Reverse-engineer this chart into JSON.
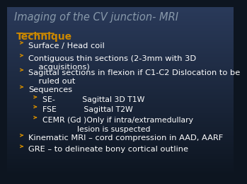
{
  "title": "Imaging of the CV junction- MRI",
  "title_color": "#8899aa",
  "title_style": "italic",
  "title_fontsize": 10.5,
  "section_label": "Technique",
  "section_color": "#cc8800",
  "section_fontsize": 10,
  "bullet_color": "#ffffff",
  "arrow_color": "#cc8800",
  "bullet_fontsize": 8.2,
  "sub_bullet_fontsize": 7.8,
  "bullets": [
    "Surface / Head coil",
    "Contiguous thin sections (2-3mm with 3D\n    acquisitions)",
    "Sagittal sections in flexion if C1-C2 Dislocation to be\n    ruled out",
    "Sequences"
  ],
  "sub_bullets": [
    "SE-           Sagittal 3D T1W",
    "FSE           Sagittal T2W",
    "CEMR (Gd )Only if intra/extramedullary\n              lesion is suspected"
  ],
  "extra_bullets": [
    "Kinematic MRI – cord compression in AAD, AARF",
    "GRE – to delineate bony cortical outline"
  ],
  "bg_colors": [
    "#0d1520",
    "#2a3a5a"
  ]
}
